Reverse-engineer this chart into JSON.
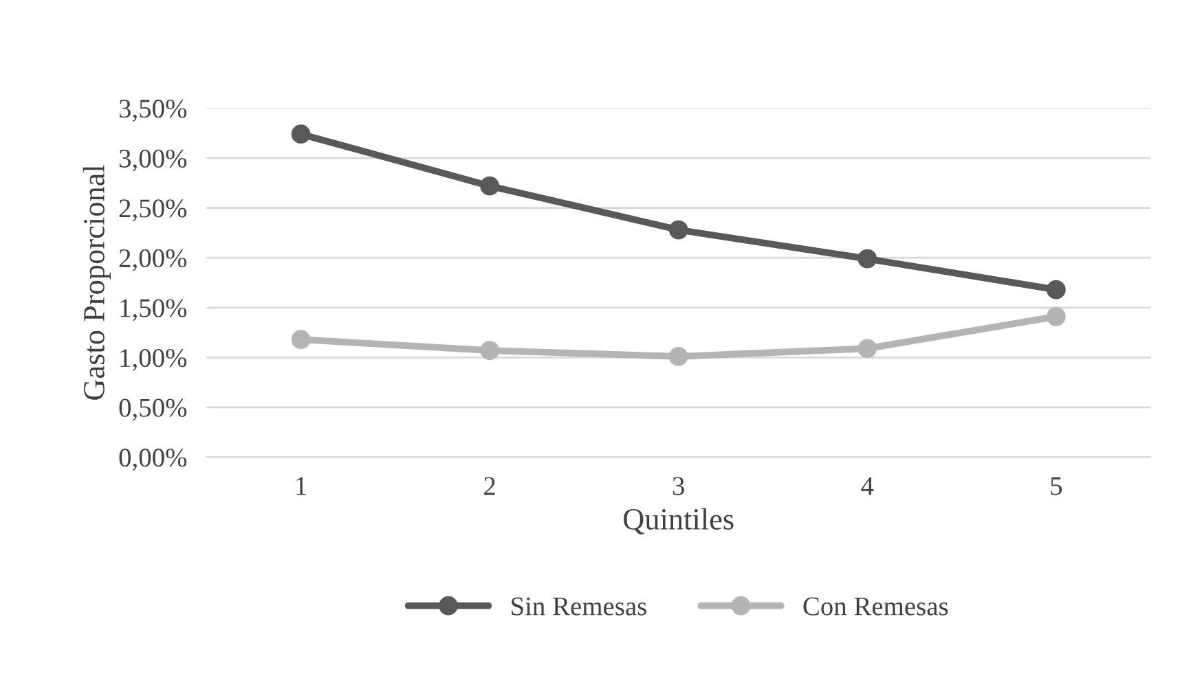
{
  "chart_data": {
    "type": "line",
    "xlabel": "Quintiles",
    "ylabel": "Gasto Proporcional",
    "categories": [
      "1",
      "2",
      "3",
      "4",
      "5"
    ],
    "series": [
      {
        "name": "Sin Remesas",
        "color": "#595959",
        "values": [
          3.24,
          2.72,
          2.28,
          1.99,
          1.68
        ]
      },
      {
        "name": "Con Remesas",
        "color": "#b4b4b4",
        "values": [
          1.18,
          1.07,
          1.01,
          1.09,
          1.41
        ]
      }
    ],
    "ylim": [
      0,
      3.5
    ],
    "yticks": [
      {
        "value": 0,
        "label": "0,00%"
      },
      {
        "value": 0.5,
        "label": "0,50%"
      },
      {
        "value": 1,
        "label": "1,00%"
      },
      {
        "value": 1.5,
        "label": "1,50%"
      },
      {
        "value": 2,
        "label": "2,00%"
      },
      {
        "value": 2.5,
        "label": "2,50%"
      },
      {
        "value": 3,
        "label": "3,00%"
      },
      {
        "value": 3.5,
        "label": "3,50%"
      }
    ],
    "grid": "y",
    "legend": "bottom",
    "marker": "circle",
    "line_style": "solid"
  }
}
